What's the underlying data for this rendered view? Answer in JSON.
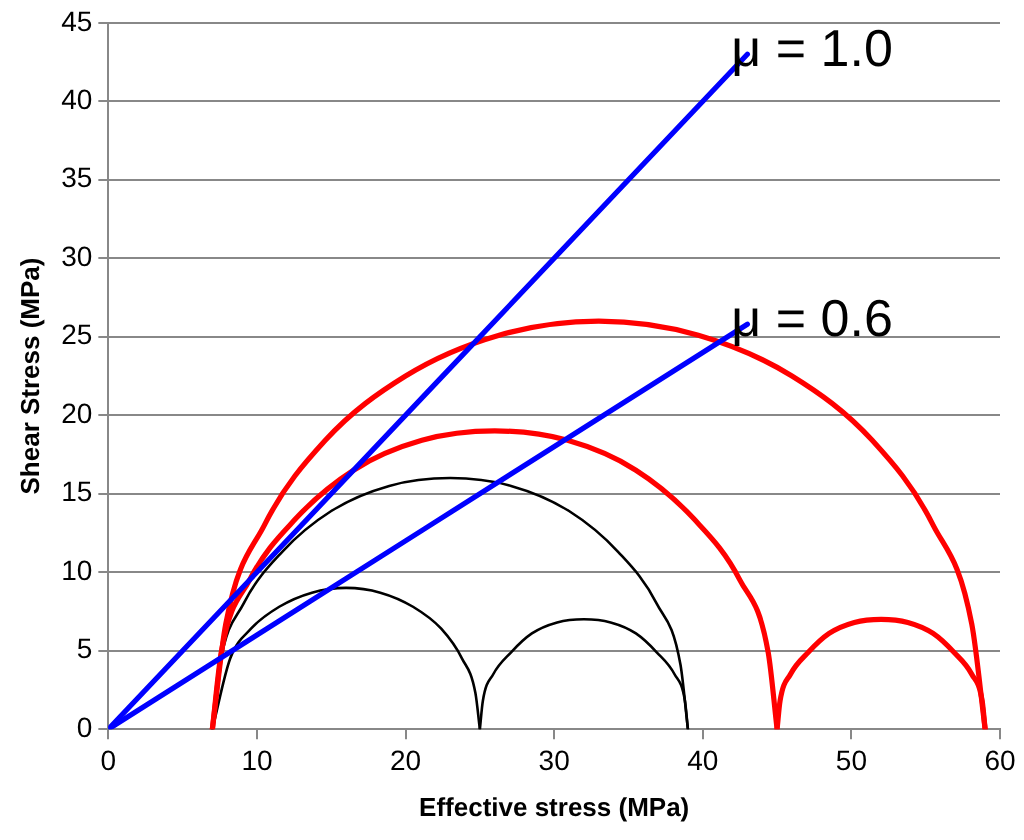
{
  "chart_data": {
    "type": "line",
    "xlabel": "Effective stress (MPa)",
    "ylabel": "Shear Stress (MPa)",
    "xlim": [
      0,
      60
    ],
    "xticks": [
      0,
      10,
      20,
      30,
      40,
      50,
      60
    ],
    "ylim": [
      0,
      45
    ],
    "yticks": [
      0,
      5,
      10,
      15,
      20,
      25,
      30,
      35,
      40,
      45
    ],
    "grid": "y",
    "legend": false,
    "marker": "none",
    "series": [
      {
        "name": "μ = 1.0",
        "color": "#0000ff",
        "x": [
          0,
          43
        ],
        "values": [
          0,
          43
        ]
      },
      {
        "name": "μ = 0.6",
        "color": "#0000ff",
        "x": [
          0,
          43
        ],
        "values": [
          0,
          25.8
        ]
      },
      {
        "color": "#ff0000",
        "x": [
          7,
          7.9,
          10.5,
          14.6,
          20,
          26.3,
          33,
          39.7,
          46,
          51.4,
          55.5,
          58.1,
          59
        ],
        "values": [
          0,
          6.7,
          13,
          18.4,
          22.5,
          25.1,
          26,
          25.1,
          22.5,
          18.4,
          13,
          6.7,
          0
        ]
      },
      {
        "color": "#ff0000",
        "x": [
          7,
          7.6,
          9.5,
          12.6,
          16.5,
          21.1,
          26,
          30.9,
          35.5,
          39.4,
          42.5,
          44.4,
          45
        ],
        "values": [
          0,
          4.9,
          9.5,
          13.4,
          16.5,
          18.4,
          19,
          18.4,
          16.5,
          13.4,
          9.5,
          4.9,
          0
        ]
      },
      {
        "color": "#ff0000",
        "x": [
          45,
          45.2,
          45.9,
          47.1,
          48.5,
          50.2,
          52,
          53.8,
          55.5,
          56.9,
          58.1,
          58.8,
          59
        ],
        "values": [
          0,
          1.8,
          3.5,
          4.9,
          6.1,
          6.8,
          7,
          6.8,
          6.1,
          4.9,
          3.5,
          1.8,
          0
        ]
      },
      {
        "color": "#000000",
        "x": [
          7,
          7.5,
          9.1,
          11.7,
          15,
          18.9,
          23,
          27.1,
          31,
          34.3,
          36.9,
          38.5,
          39
        ],
        "values": [
          0,
          4.1,
          8,
          11.3,
          13.9,
          15.5,
          16,
          15.5,
          13.9,
          11.3,
          8,
          4.1,
          0
        ]
      },
      {
        "color": "#000000",
        "x": [
          7,
          8.2,
          9.6,
          11.5,
          13.7,
          16,
          18.3,
          20.5,
          22.4,
          23.8,
          24.7,
          25
        ],
        "values": [
          0,
          4.5,
          6.4,
          7.8,
          8.7,
          9,
          8.7,
          7.8,
          6.4,
          4.5,
          2.3,
          0
        ]
      },
      {
        "color": "#000000",
        "x": [
          25,
          25.2,
          25.9,
          27.1,
          28.5,
          30.2,
          32,
          33.8,
          35.5,
          36.9,
          38.1,
          38.8,
          39
        ],
        "values": [
          0,
          1.8,
          3.5,
          4.9,
          6.1,
          6.8,
          7,
          6.8,
          6.1,
          4.9,
          3.5,
          1.8,
          0
        ]
      }
    ]
  }
}
